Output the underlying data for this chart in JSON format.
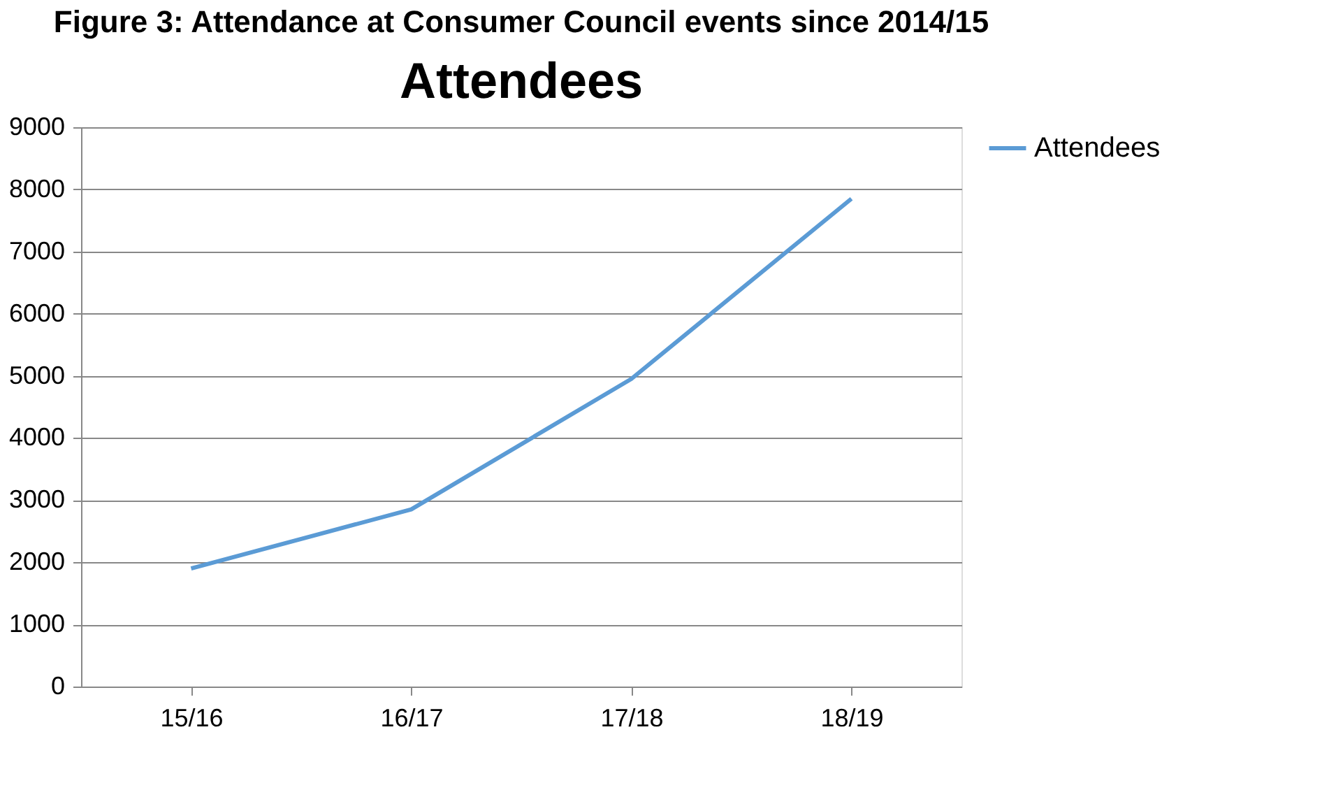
{
  "chart_data": {
    "type": "line",
    "title": "Figure 3: Attendance at Consumer Council events since 2014/15",
    "subtitle": "Attendees",
    "categories": [
      "15/16",
      "16/17",
      "17/18",
      "18/19"
    ],
    "series": [
      {
        "name": "Attendees",
        "color": "#5b9bd5",
        "values": [
          1900,
          2850,
          4950,
          7850
        ]
      }
    ],
    "ylim": [
      0,
      9000
    ],
    "yticks": [
      0,
      1000,
      2000,
      3000,
      4000,
      5000,
      6000,
      7000,
      8000,
      9000
    ],
    "grid": "y",
    "legend": "right",
    "marker": "none",
    "line_style": "solid"
  }
}
